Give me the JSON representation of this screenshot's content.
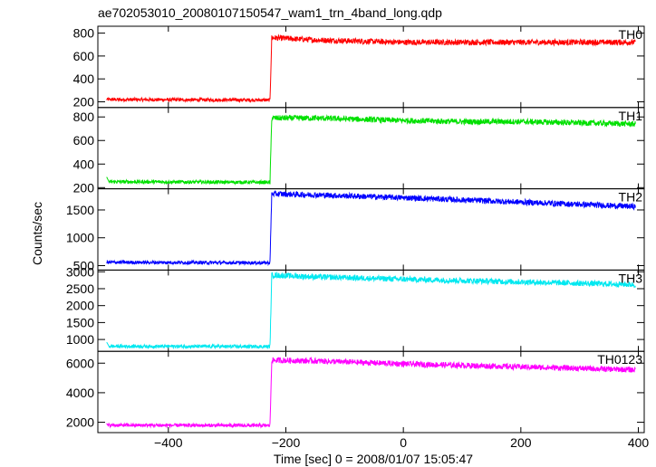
{
  "chart_data": {
    "type": "line",
    "title": "ae702053010_20080107150547_wam1_trn_4band_long.qdp",
    "xlabel": "Time [sec] 0 = 2008/01/07 15:05:47",
    "ylabel": "Counts/sec",
    "xlim": [
      -520,
      410
    ],
    "x_ticks": [
      "−400",
      "−200",
      "0",
      "200",
      "400"
    ],
    "x_tick_values": [
      -400,
      -200,
      0,
      200,
      400
    ],
    "grid": false,
    "onset_time": -227,
    "panels": [
      {
        "name": "TH0",
        "color": "#ff0000",
        "ylim": [
          150,
          860
        ],
        "y_ticks": [
          "200",
          "400",
          "600",
          "800"
        ],
        "y_tick_values": [
          200,
          400,
          600,
          800
        ],
        "x": [
          -505,
          -227,
          -224,
          -150,
          0,
          100,
          200,
          300,
          395
        ],
        "values": [
          220,
          215,
          760,
          740,
          720,
          720,
          720,
          720,
          720
        ]
      },
      {
        "name": "TH1",
        "color": "#00e000",
        "ylim": [
          190,
          880
        ],
        "y_ticks": [
          "200",
          "400",
          "600",
          "800"
        ],
        "y_tick_values": [
          200,
          400,
          600,
          800
        ],
        "x": [
          -505,
          -227,
          -224,
          -150,
          0,
          100,
          200,
          300,
          395
        ],
        "values": [
          250,
          245,
          790,
          790,
          770,
          760,
          760,
          750,
          740
        ],
        "spike": {
          "x": -505,
          "value": 290
        }
      },
      {
        "name": "TH2",
        "color": "#0000ff",
        "ylim": [
          420,
          1880
        ],
        "y_ticks": [
          "500",
          "1000",
          "1500"
        ],
        "y_tick_values": [
          500,
          1000,
          1500
        ],
        "x": [
          -505,
          -227,
          -224,
          -150,
          0,
          100,
          200,
          300,
          395
        ],
        "values": [
          560,
          550,
          1790,
          1770,
          1720,
          1680,
          1640,
          1600,
          1560
        ]
      },
      {
        "name": "TH3",
        "color": "#00e8f0",
        "ylim": [
          650,
          3050
        ],
        "y_ticks": [
          "1000",
          "1500",
          "2000",
          "2500",
          "3000"
        ],
        "y_tick_values": [
          1000,
          1500,
          2000,
          2500,
          3000
        ],
        "x": [
          -505,
          -227,
          -224,
          -150,
          0,
          100,
          200,
          300,
          395
        ],
        "values": [
          800,
          790,
          2900,
          2850,
          2780,
          2740,
          2700,
          2660,
          2620
        ],
        "spike": {
          "x": -505,
          "value": 920
        }
      },
      {
        "name": "TH0123",
        "color": "#ff00ff",
        "ylim": [
          1300,
          6800
        ],
        "y_ticks": [
          "2000",
          "4000",
          "6000"
        ],
        "y_tick_values": [
          2000,
          4000,
          6000
        ],
        "x": [
          -505,
          -227,
          -224,
          -150,
          0,
          100,
          200,
          300,
          395
        ],
        "values": [
          1800,
          1780,
          6200,
          6150,
          5950,
          5850,
          5750,
          5650,
          5550
        ]
      }
    ]
  }
}
